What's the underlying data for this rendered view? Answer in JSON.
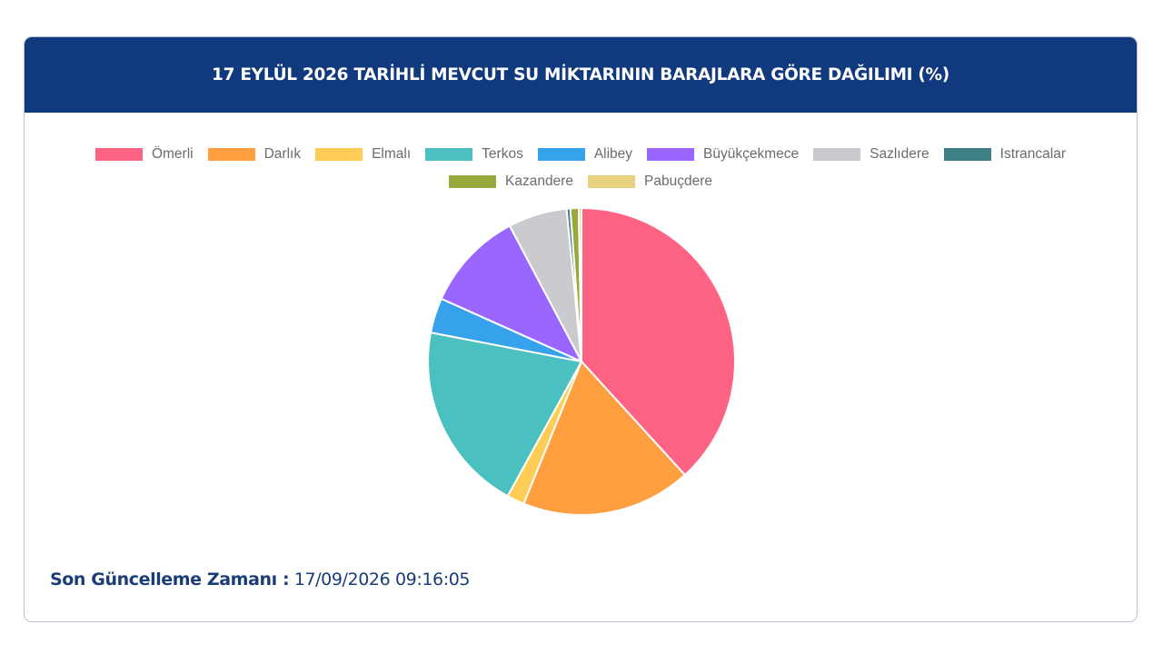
{
  "header": {
    "title": "17 EYLÜL 2026 TARİHLİ MEVCUT SU MİKTARININ BARAJLARA GÖRE DAĞILIMI (%)"
  },
  "legend": [
    {
      "label": "Ömerli",
      "color": "#ff6384"
    },
    {
      "label": "Darlık",
      "color": "#ff9f40"
    },
    {
      "label": "Elmalı",
      "color": "#ffcd56"
    },
    {
      "label": "Terkos",
      "color": "#4bc0c0"
    },
    {
      "label": "Alibey",
      "color": "#36a2eb"
    },
    {
      "label": "Büyükçekmece",
      "color": "#9966ff"
    },
    {
      "label": "Sazlıdere",
      "color": "#c9cbcf"
    },
    {
      "label": "Istrancalar",
      "color": "#3e7f86"
    },
    {
      "label": "Kazandere",
      "color": "#98a83a"
    },
    {
      "label": "Pabuçdere",
      "color": "#e8d27f"
    }
  ],
  "chart_data": {
    "type": "pie",
    "title": "17 EYLÜL 2026 TARİHLİ MEVCUT SU MİKTARININ BARAJLARA GÖRE DAĞILIMI (%)",
    "legend_position": "top",
    "categories": [
      "Ömerli",
      "Darlık",
      "Elmalı",
      "Terkos",
      "Alibey",
      "Büyükçekmece",
      "Sazlıdere",
      "Istrancalar",
      "Kazandere",
      "Pabuçdere"
    ],
    "values": [
      39.5,
      18.5,
      1.9,
      20.7,
      3.8,
      10.9,
      6.4,
      0.4,
      0.9,
      0.3
    ],
    "colors": [
      "#ff6384",
      "#ff9f40",
      "#ffcd56",
      "#4bc0c0",
      "#36a2eb",
      "#9966ff",
      "#c9cbcf",
      "#3e7f86",
      "#98a83a",
      "#e8d27f"
    ]
  },
  "footer": {
    "label": "Son Güncelleme Zamanı :",
    "value": "17/09/2026 09:16:05"
  }
}
